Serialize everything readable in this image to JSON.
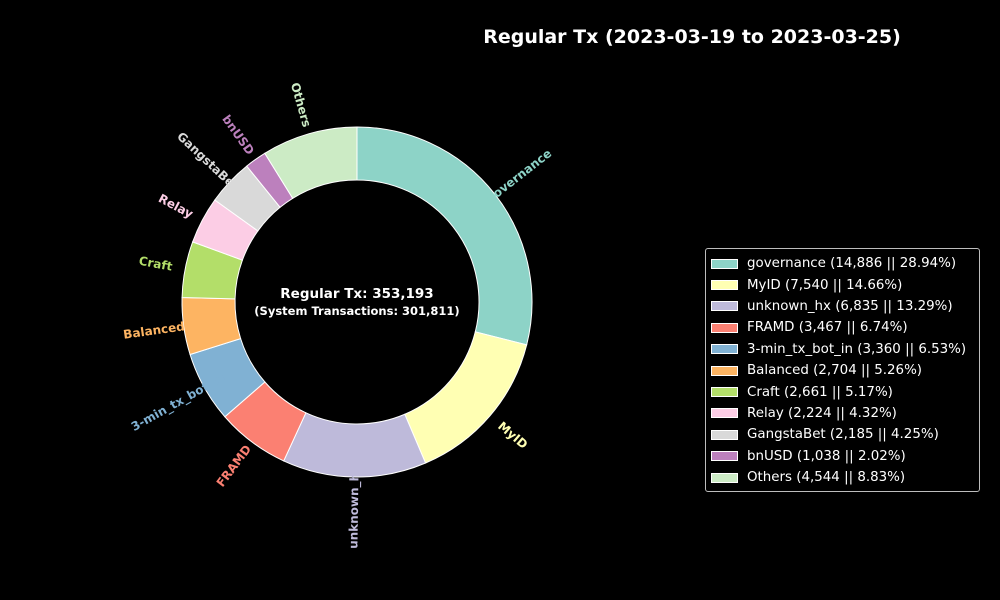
{
  "chart_data": {
    "type": "pie",
    "style": "donut",
    "title": "Regular Tx (2023-03-19 to 2023-03-25)",
    "center_label": {
      "line1": "Regular Tx: 353,193",
      "line2": "(System Transactions: 301,811)"
    },
    "legend_position": "center-right",
    "slice_border_color": "#ffffff",
    "slices": [
      {
        "label": "governance",
        "value": 14886,
        "percent": 28.94,
        "color": "#8dd3c7",
        "legend": "governance (14,886 || 28.94%)"
      },
      {
        "label": "MyID",
        "value": 7540,
        "percent": 14.66,
        "color": "#ffffb3",
        "legend": "MyID (7,540 || 14.66%)"
      },
      {
        "label": "unknown_hx",
        "value": 6835,
        "percent": 13.29,
        "color": "#bebada",
        "legend": "unknown_hx (6,835 || 13.29%)"
      },
      {
        "label": "FRAMD",
        "value": 3467,
        "percent": 6.74,
        "color": "#fb8072",
        "legend": "FRAMD (3,467 || 6.74%)"
      },
      {
        "label": "3-min_tx_bot_in",
        "value": 3360,
        "percent": 6.53,
        "color": "#80b1d3",
        "legend": "3-min_tx_bot_in (3,360 || 6.53%)"
      },
      {
        "label": "Balanced",
        "value": 2704,
        "percent": 5.26,
        "color": "#fdb462",
        "legend": "Balanced (2,704 || 5.26%)"
      },
      {
        "label": "Craft",
        "value": 2661,
        "percent": 5.17,
        "color": "#b3de69",
        "legend": "Craft (2,661 || 5.17%)"
      },
      {
        "label": "Relay",
        "value": 2224,
        "percent": 4.32,
        "color": "#fccde5",
        "legend": "Relay (2,224 || 4.32%)"
      },
      {
        "label": "GangstaBet",
        "value": 2185,
        "percent": 4.25,
        "color": "#d9d9d9",
        "legend": "GangstaBet (2,185 || 4.25%)"
      },
      {
        "label": "bnUSD",
        "value": 1038,
        "percent": 2.02,
        "color": "#bc80bd",
        "legend": "bnUSD (1,038 || 2.02%)"
      },
      {
        "label": "Others",
        "value": 4544,
        "percent": 8.83,
        "color": "#ccebc5",
        "legend": "Others (4,544 || 8.83%)"
      }
    ]
  }
}
